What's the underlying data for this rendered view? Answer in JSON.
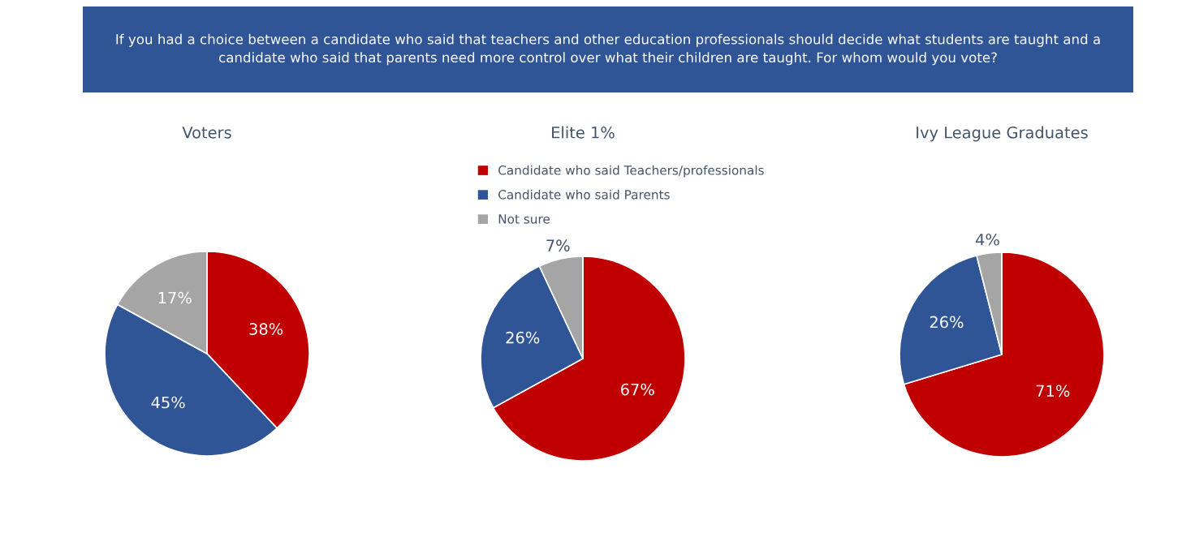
{
  "chart_data": [
    {
      "type": "other",
      "title": "If you had a choice between a candidate who said that teachers and other education professionals should decide what students are taught and a\ncandidate who said that parents need more control over what their children are taught. For whom would you vote?"
    },
    {
      "type": "pie",
      "title": "Voters",
      "categories": [
        null,
        null,
        null
      ],
      "values": [
        38,
        45,
        17
      ],
      "value_labels": [
        "38%",
        "45%",
        "17%"
      ],
      "colors": [
        "#c00000",
        "#2f5597",
        "#a5a5a5"
      ]
    },
    {
      "type": "pie",
      "title": "Elite 1%",
      "categories": [
        "Candidate who said Teachers/professionals",
        "Candidate who said Parents",
        "Not sure"
      ],
      "values": [
        67,
        26,
        7
      ],
      "value_labels": [
        "67%",
        "26%",
        "7%"
      ],
      "colors": [
        "#c00000",
        "#2f5597",
        "#a5a5a5"
      ],
      "legend": "top"
    },
    {
      "type": "pie",
      "title": "Ivy League Graduates",
      "categories": [
        null,
        null,
        null
      ],
      "values": [
        71,
        26,
        4
      ],
      "value_labels": [
        "71%",
        "26%",
        "4%"
      ],
      "colors": [
        "#c00000",
        "#2f5597",
        "#a5a5a5"
      ]
    }
  ]
}
